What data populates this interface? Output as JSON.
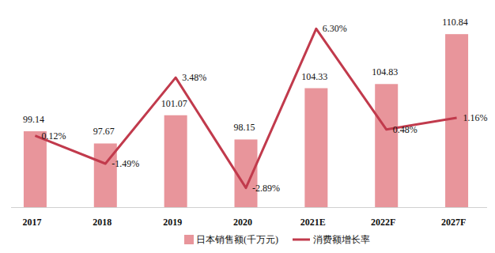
{
  "chart_data": {
    "type": "bar",
    "categories": [
      "2017",
      "2018",
      "2019",
      "2020",
      "2021E",
      "2022F",
      "2027F"
    ],
    "series": [
      {
        "name": "日本销售额(千万元)",
        "type": "bar",
        "color": "#e8959b",
        "values": [
          99.14,
          97.67,
          101.07,
          98.15,
          104.33,
          104.83,
          110.84
        ]
      },
      {
        "name": "消费额增长率",
        "type": "line",
        "axis": "y2",
        "color": "#c13a4c",
        "values": [
          0.12,
          -1.49,
          3.48,
          -2.89,
          6.3,
          0.48,
          1.16
        ],
        "value_labels": [
          "0.12%",
          "-1.49%",
          "3.48%",
          "-2.89%",
          "6.30%",
          "0.48%",
          "1.16%"
        ]
      }
    ],
    "ylim": [
      90,
      114
    ],
    "y2lim": [
      -4,
      7.5
    ],
    "grid": false,
    "legend": "bottom",
    "data_labels": true,
    "tick_labels": "x"
  }
}
